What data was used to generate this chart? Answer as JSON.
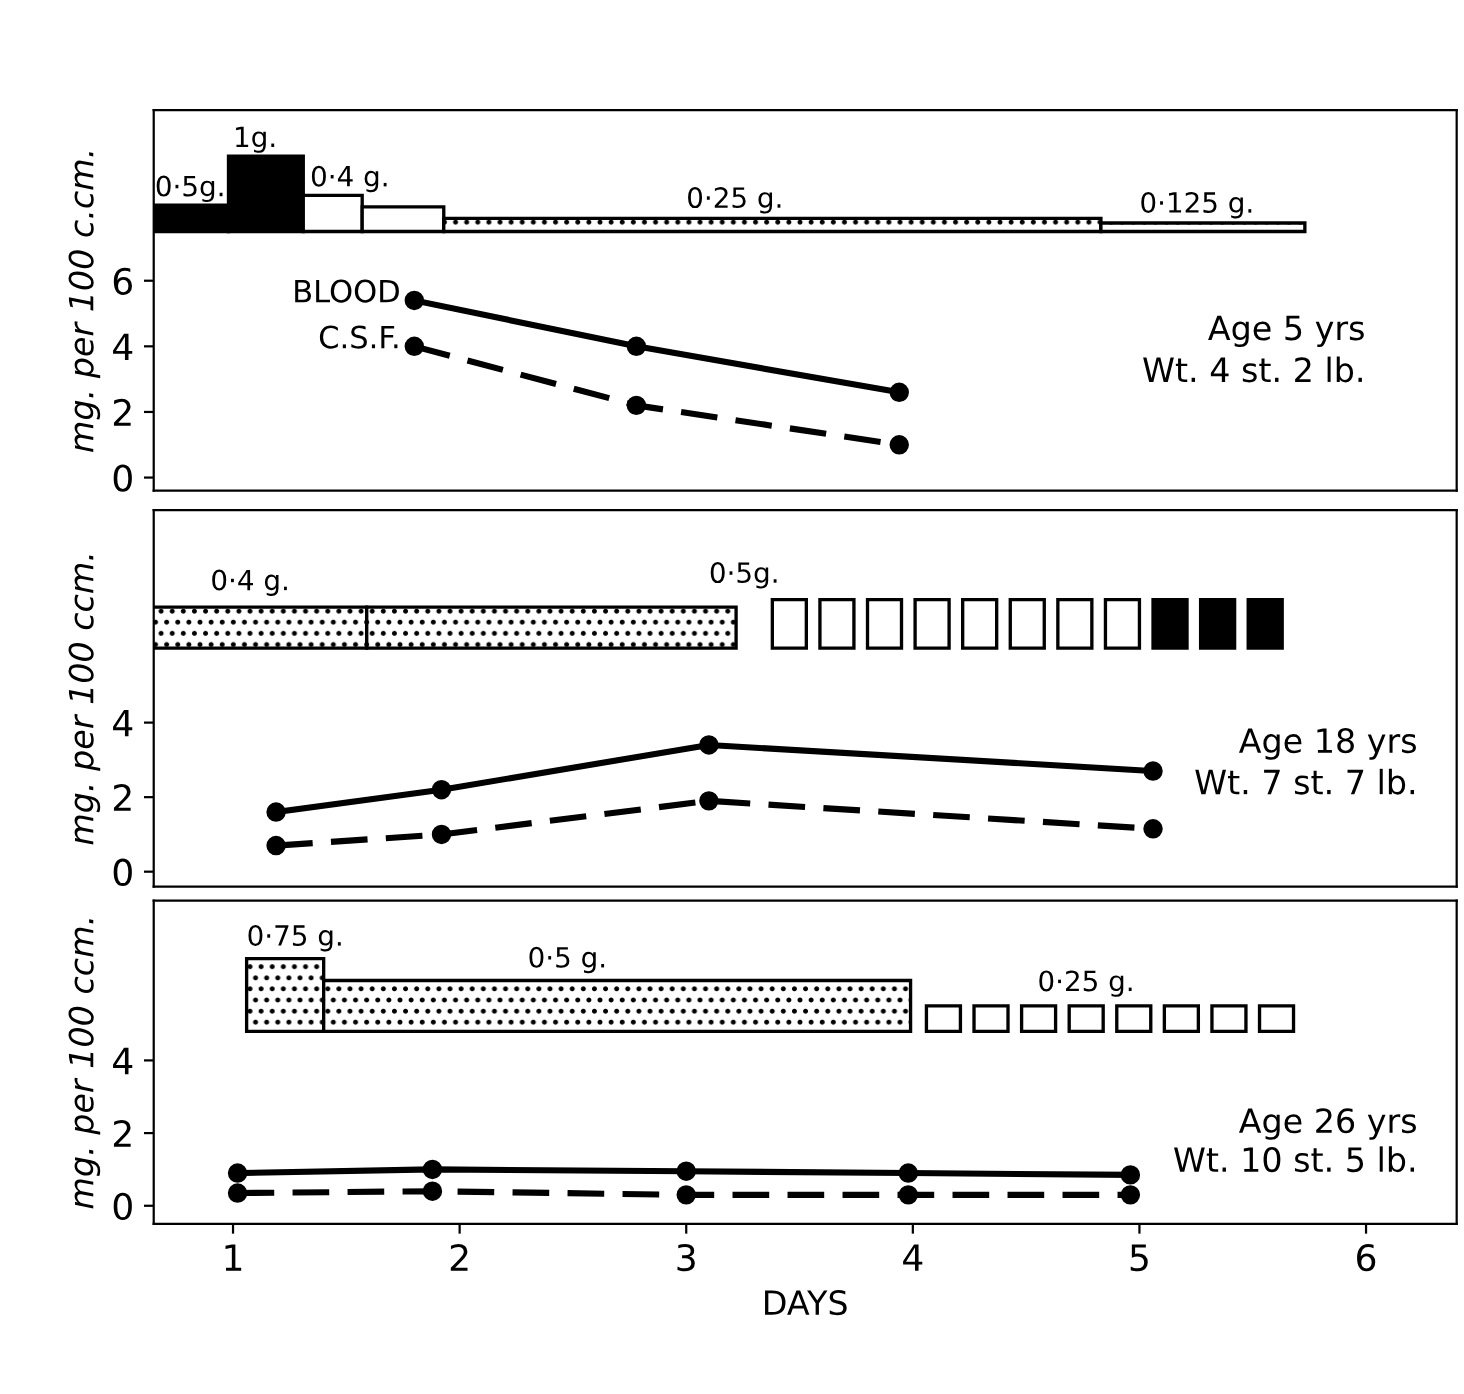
{
  "chart_data": [
    {
      "type": "line",
      "ylabel": "mg. per 100 c.cm.",
      "xlim": [
        0.65,
        6.4
      ],
      "ylim": [
        -0.4,
        11.2
      ],
      "yticks": [
        0,
        2,
        4,
        6
      ],
      "tick_labels": "y",
      "marker": "circle",
      "legend": false,
      "grid": false,
      "series": [
        {
          "name": "BLOOD",
          "color": "#000000",
          "line_style": "solid",
          "x": [
            1.8,
            2.78,
            3.94
          ],
          "values": [
            5.4,
            4.0,
            2.6
          ]
        },
        {
          "name": "C.S.F.",
          "color": "#000000",
          "line_style": "dashed",
          "x": [
            1.8,
            2.78,
            3.94
          ],
          "values": [
            4.0,
            2.2,
            1.0
          ]
        }
      ],
      "annotations": [
        "0·5g.",
        "1g.",
        "0·4 g.",
        "0·25 g.",
        "0·125 g.",
        "Age 5 yrs",
        "Wt. 4 st. 2 lb."
      ]
    },
    {
      "type": "line",
      "ylabel": "mg. per 100 ccm.",
      "xlim": [
        0.65,
        6.4
      ],
      "ylim": [
        -0.4,
        9.7
      ],
      "yticks": [
        0,
        2,
        4
      ],
      "tick_labels": "y",
      "marker": "circle",
      "legend": false,
      "grid": false,
      "series": [
        {
          "color": "#000000",
          "line_style": "solid",
          "x": [
            1.19,
            1.92,
            3.1,
            5.06
          ],
          "values": [
            1.6,
            2.2,
            3.4,
            2.7
          ]
        },
        {
          "color": "#000000",
          "line_style": "dashed",
          "x": [
            1.19,
            1.92,
            3.1,
            5.06
          ],
          "values": [
            0.7,
            1.0,
            1.9,
            1.15
          ]
        }
      ],
      "annotations": [
        "0·4 g.",
        "0·5g.",
        "Age 18 yrs",
        "Wt. 7 st. 7 lb."
      ]
    },
    {
      "type": "line",
      "ylabel": "mg. per 100 ccm.",
      "xlabel": "DAYS",
      "xlim": [
        0.65,
        6.4
      ],
      "ylim": [
        -0.5,
        8.4
      ],
      "xticks": [
        1,
        2,
        3,
        4,
        5,
        6
      ],
      "yticks": [
        0,
        2,
        4
      ],
      "marker": "circle",
      "legend": false,
      "grid": false,
      "series": [
        {
          "color": "#000000",
          "line_style": "solid",
          "x": [
            1.02,
            1.88,
            3.0,
            3.98,
            4.96
          ],
          "values": [
            0.9,
            1.0,
            0.95,
            0.9,
            0.85
          ]
        },
        {
          "color": "#000000",
          "line_style": "dashed",
          "x": [
            1.02,
            1.88,
            3.0,
            3.98,
            4.96
          ],
          "values": [
            0.35,
            0.4,
            0.3,
            0.3,
            0.3
          ]
        }
      ],
      "annotations": [
        "0·75 g.",
        "0·5 g.",
        "0·25 g.",
        "Age 26 yrs",
        "Wt. 10 st. 5 lb."
      ]
    }
  ]
}
